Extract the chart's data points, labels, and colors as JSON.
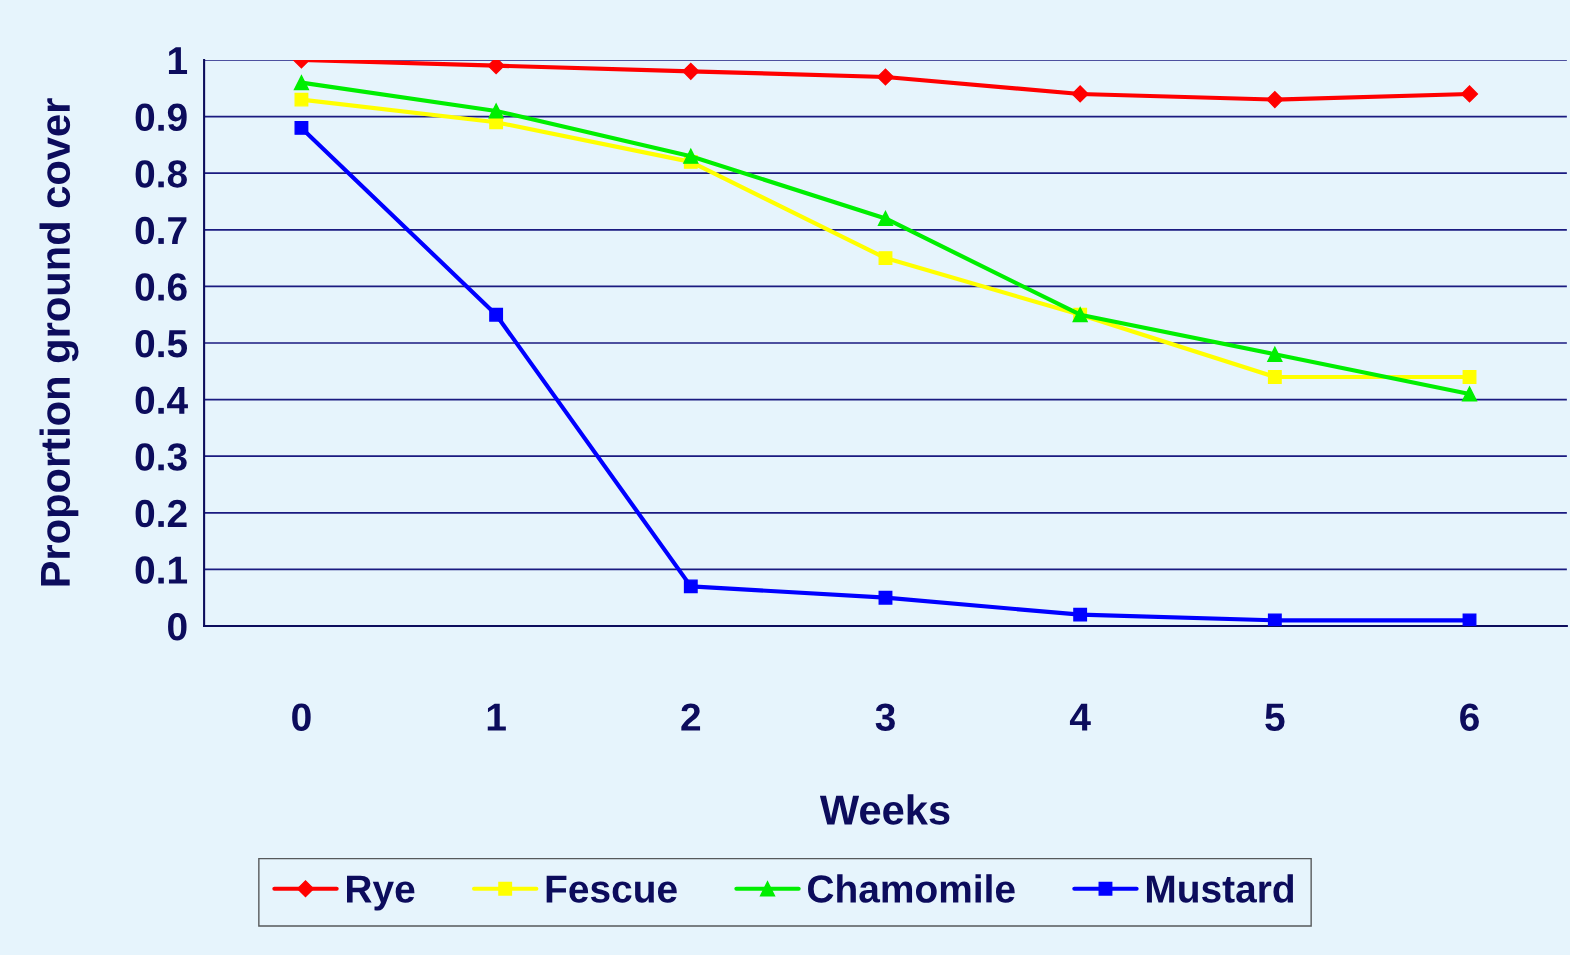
{
  "chart_data": {
    "type": "line",
    "xlabel": "Weeks",
    "ylabel": "Proportion ground cover",
    "categories": [
      "0",
      "1",
      "2",
      "3",
      "4",
      "5",
      "6"
    ],
    "ylim": [
      0,
      1
    ],
    "yticks": [
      0,
      0.1,
      0.2,
      0.3,
      0.4,
      0.5,
      0.6,
      0.7,
      0.8,
      0.9,
      1
    ],
    "grid": "y",
    "legend": "bottom",
    "series": [
      {
        "name": "Rye",
        "color": "#ff0000",
        "marker": "diamond",
        "values": [
          1,
          0.99,
          0.98,
          0.97,
          0.94,
          0.93,
          0.94
        ]
      },
      {
        "name": "Fescue",
        "color": "#ffff00",
        "marker": "square",
        "values": [
          0.93,
          0.89,
          0.82,
          0.65,
          0.55,
          0.44,
          0.44
        ]
      },
      {
        "name": "Chamomile",
        "color": "#00ee00",
        "marker": "triangle",
        "values": [
          0.96,
          0.91,
          0.83,
          0.72,
          0.55,
          0.48,
          0.41
        ]
      },
      {
        "name": "Mustard",
        "color": "#0000ff",
        "marker": "square",
        "values": [
          0.88,
          0.55,
          0.07,
          0.05,
          0.02,
          0.01,
          0.01
        ]
      }
    ]
  }
}
